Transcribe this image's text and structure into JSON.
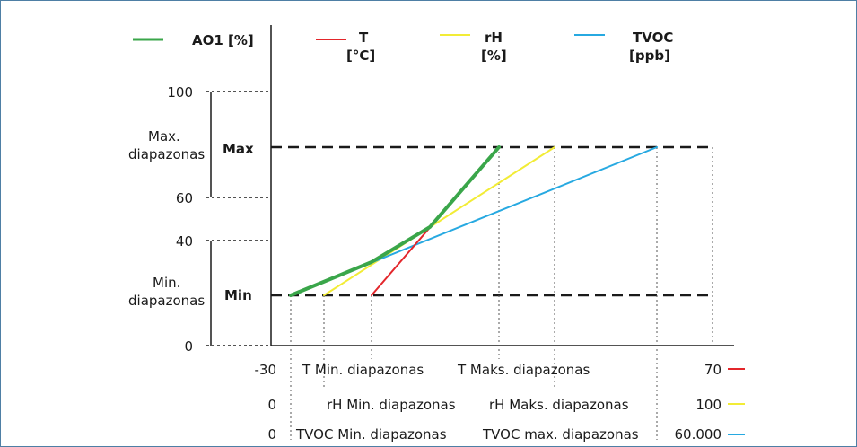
{
  "legend": [
    {
      "id": "ao1",
      "label_line1": "AO1 [%]",
      "label_line2": "",
      "color": "#3aa64a"
    },
    {
      "id": "t",
      "label_line1": "T",
      "label_line2": "[°C]",
      "color": "#e3262b"
    },
    {
      "id": "rh",
      "label_line1": "rH",
      "label_line2": "[%]",
      "color": "#f2ec36"
    },
    {
      "id": "tvoc",
      "label_line1": "TVOC",
      "label_line2": "[ppb]",
      "color": "#27a9e1"
    }
  ],
  "y_axis": {
    "tick_100": "100",
    "tick_60": "60",
    "tick_40": "40",
    "tick_0": "0",
    "max_range_line1": "Max.",
    "max_range_line2": "diapazonas",
    "min_range_line1": "Min.",
    "min_range_line2": "diapazonas",
    "max_label": "Max",
    "min_label": "Min"
  },
  "x_rows": {
    "t": {
      "start": "-30",
      "min_label": "T Min. diapazonas",
      "max_label": "T Maks. diapazonas",
      "end": "70"
    },
    "rh": {
      "start": "0",
      "min_label": "rH Min. diapazonas",
      "max_label": "rH Maks. diapazonas",
      "end": "100"
    },
    "tvoc": {
      "start": "0",
      "min_label": "TVOC Min. diapazonas",
      "max_label": "TVOC max. diapazonas",
      "end": "60.000"
    }
  },
  "colors": {
    "frame": "#4e7fa5",
    "axis": "#1a1a1a",
    "ao1": "#3aa64a",
    "t": "#e3262b",
    "rh": "#f2ec36",
    "tvoc": "#27a9e1"
  }
}
